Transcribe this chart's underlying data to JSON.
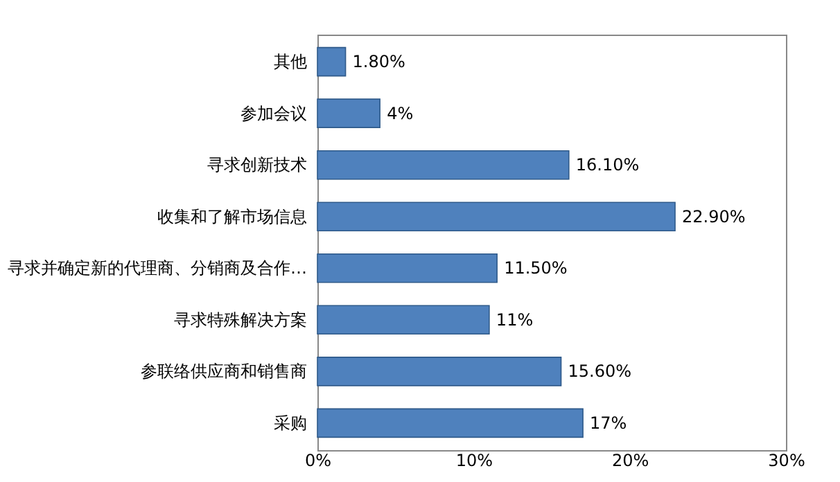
{
  "chart_data": {
    "type": "bar",
    "orientation": "horizontal",
    "categories": [
      "其他",
      "参加会议",
      "寻求创新技术",
      "收集和了解市场信息",
      "寻求并确定新的代理商、分销商及合作…",
      "寻求特殊解决方案",
      "参联络供应商和销售商",
      "采购"
    ],
    "values": [
      1.8,
      4,
      16.1,
      22.9,
      11.5,
      11,
      15.6,
      17
    ],
    "value_labels": [
      "1.80%",
      "4%",
      "16.10%",
      "22.90%",
      "11.50%",
      "11%",
      "15.60%",
      "17%"
    ],
    "color": "#4f81bd",
    "xlim": [
      0,
      30
    ],
    "xticks": [
      {
        "value": 0,
        "label": "0%"
      },
      {
        "value": 10,
        "label": "10%"
      },
      {
        "value": 20,
        "label": "20%"
      },
      {
        "value": 30,
        "label": "30%"
      }
    ],
    "grid": false
  }
}
